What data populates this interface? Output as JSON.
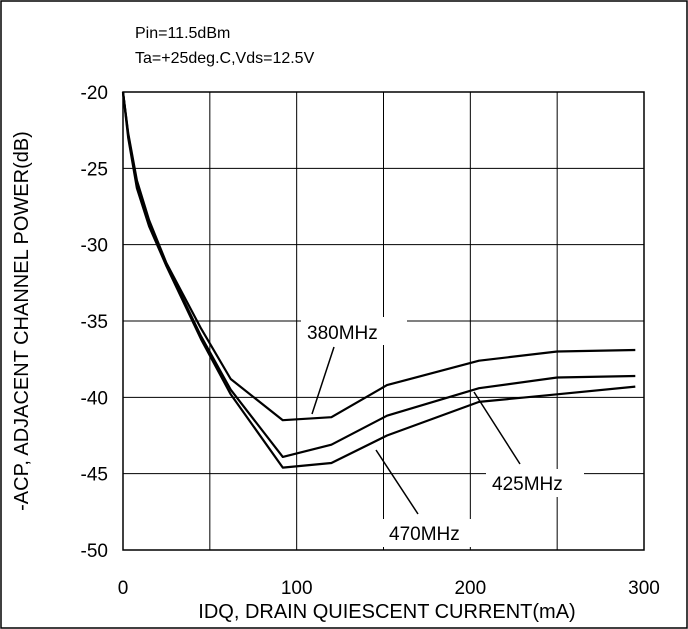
{
  "chart_data": {
    "type": "line",
    "annotations": [
      "Pin=11.5dBm",
      "Ta=+25deg.C,Vds=12.5V"
    ],
    "xlabel": "IDQ, DRAIN QUIESCENT CURRENT(mA)",
    "ylabel": "-ACP, ADJACENT CHANNEL POWER(dB)",
    "xlim": [
      0,
      300
    ],
    "ylim": [
      -50,
      -20
    ],
    "xticks": [
      0,
      100,
      200,
      300
    ],
    "xtick_labels": [
      "0",
      "100",
      "200",
      "300"
    ],
    "yticks": [
      -20,
      -25,
      -30,
      -35,
      -40,
      -45,
      -50
    ],
    "ytick_labels": [
      "-20",
      "-25",
      "-30",
      "-35",
      "-40",
      "-45",
      "-50"
    ],
    "grid": true,
    "series": [
      {
        "name": "380MHz",
        "x": [
          0,
          3,
          8,
          15,
          25,
          45,
          62,
          92,
          120,
          152,
          205,
          250,
          295
        ],
        "y": [
          -20,
          -22.7,
          -25.8,
          -28.4,
          -31.2,
          -35.5,
          -38.8,
          -41.5,
          -41.3,
          -39.2,
          -37.6,
          -37.0,
          -36.9
        ]
      },
      {
        "name": "425MHz",
        "x": [
          0,
          3,
          8,
          15,
          25,
          45,
          62,
          92,
          120,
          152,
          205,
          250,
          295
        ],
        "y": [
          -20,
          -22.8,
          -26.0,
          -28.5,
          -31.3,
          -36.0,
          -39.5,
          -43.9,
          -43.1,
          -41.2,
          -39.4,
          -38.7,
          -38.6
        ]
      },
      {
        "name": "470MHz",
        "x": [
          0,
          3,
          8,
          15,
          25,
          45,
          62,
          92,
          120,
          152,
          205,
          250,
          295
        ],
        "y": [
          -20,
          -23.0,
          -26.3,
          -28.8,
          -31.4,
          -36.2,
          -39.8,
          -44.6,
          -44.3,
          -42.5,
          -40.3,
          -39.8,
          -39.3
        ]
      }
    ],
    "series_labels": [
      "380MHz",
      "425MHz",
      "470MHz"
    ]
  }
}
